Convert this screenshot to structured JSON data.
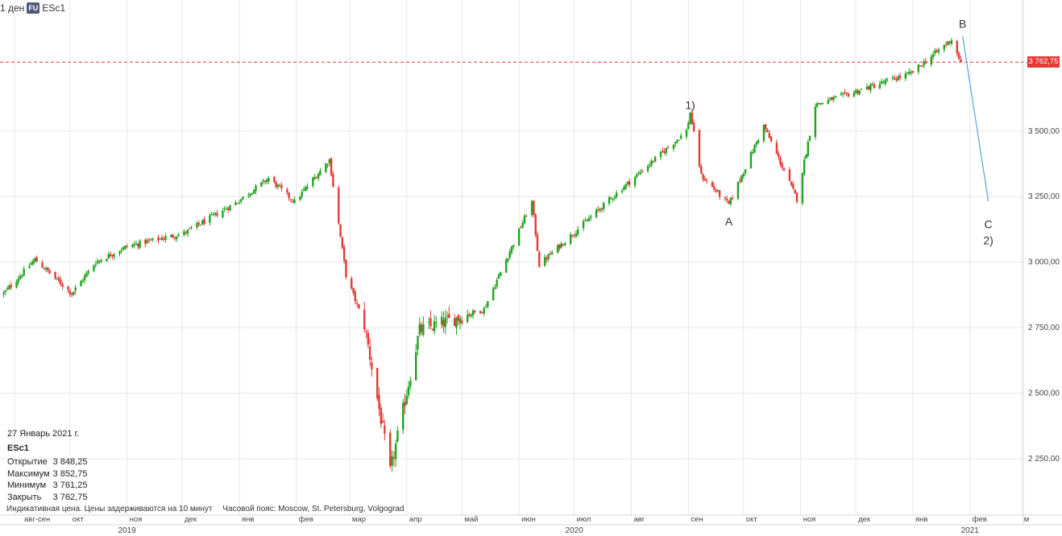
{
  "header": {
    "interval": "1 ден",
    "badge": "FU",
    "symbol": "ESc1"
  },
  "info": {
    "date": "27 Январь 2021 г.",
    "symbol": "ESc1",
    "rows": [
      {
        "label": "Открытие",
        "value": "3 848,25"
      },
      {
        "label": "Максимум",
        "value": "3 852,75"
      },
      {
        "label": "Минимум",
        "value": "3 761,25"
      },
      {
        "label": "Закрыть",
        "value": "3 762,75"
      }
    ]
  },
  "footer": {
    "note": "Индикативная цена. Цены задерживаются на 10 минут",
    "timezone": "Часовой пояс: Moscow, St. Petersburg, Volgograd"
  },
  "current_price_label": "3 762,75",
  "colors": {
    "up": "#1fa31f",
    "down": "#e53935",
    "grid": "#e6e6e6",
    "ref_line": "#e53935",
    "projection": "#5aa6d6"
  },
  "chart_data": {
    "type": "candlestick",
    "title": "",
    "xlabel": "",
    "ylabel": "",
    "ylim": [
      2090,
      4000
    ],
    "y_ticks": [
      {
        "v": 2250,
        "label": "2 250,00"
      },
      {
        "v": 2500,
        "label": "2 500,00"
      },
      {
        "v": 2750,
        "label": "2 750,00"
      },
      {
        "v": 3000,
        "label": "3 000,00"
      },
      {
        "v": 3250,
        "label": "3 250,00"
      },
      {
        "v": 3500,
        "label": "3 500,00"
      }
    ],
    "x_months": [
      {
        "label": "авг-сен",
        "date": "2019-09-01"
      },
      {
        "label": "окт",
        "date": "2019-10-01"
      },
      {
        "label": "ноя",
        "date": "2019-11-01"
      },
      {
        "label": "дек",
        "date": "2019-12-01"
      },
      {
        "label": "янв",
        "date": "2020-01-01"
      },
      {
        "label": "фев",
        "date": "2020-02-01"
      },
      {
        "label": "мар",
        "date": "2020-03-01"
      },
      {
        "label": "апр",
        "date": "2020-04-01"
      },
      {
        "label": "май",
        "date": "2020-05-01"
      },
      {
        "label": "июн",
        "date": "2020-06-01"
      },
      {
        "label": "июл",
        "date": "2020-07-01"
      },
      {
        "label": "авг",
        "date": "2020-08-01"
      },
      {
        "label": "сен",
        "date": "2020-09-01"
      },
      {
        "label": "окт",
        "date": "2020-10-01"
      },
      {
        "label": "ноя",
        "date": "2020-11-01"
      },
      {
        "label": "дек",
        "date": "2020-12-01"
      },
      {
        "label": "янв",
        "date": "2021-01-01"
      },
      {
        "label": "фев",
        "date": "2021-02-01"
      },
      {
        "label": "м",
        "date": "2021-03-01"
      }
    ],
    "x_years": [
      {
        "label": "2019",
        "date": "2019-11-01"
      },
      {
        "label": "2020",
        "date": "2020-07-01"
      },
      {
        "label": "2021",
        "date": "2021-02-01"
      }
    ],
    "x_range": [
      "2019-08-24",
      "2021-03-02"
    ],
    "reference_price": 3762.75,
    "price_path": [
      {
        "date": "2019-08-26",
        "close": 2880
      },
      {
        "date": "2019-09-12",
        "close": 3010
      },
      {
        "date": "2019-10-02",
        "close": 2880
      },
      {
        "date": "2019-10-15",
        "close": 3000
      },
      {
        "date": "2019-11-01",
        "close": 3060
      },
      {
        "date": "2019-12-02",
        "close": 3110
      },
      {
        "date": "2019-12-31",
        "close": 3230
      },
      {
        "date": "2020-01-17",
        "close": 3320
      },
      {
        "date": "2020-01-31",
        "close": 3230
      },
      {
        "date": "2020-02-19",
        "close": 3390
      },
      {
        "date": "2020-02-28",
        "close": 2950
      },
      {
        "date": "2020-03-09",
        "close": 2760
      },
      {
        "date": "2020-03-23",
        "close": 2200
      },
      {
        "date": "2020-04-08",
        "close": 2740
      },
      {
        "date": "2020-05-13",
        "close": 2820
      },
      {
        "date": "2020-06-08",
        "close": 3230
      },
      {
        "date": "2020-06-12",
        "close": 2990
      },
      {
        "date": "2020-07-22",
        "close": 3250
      },
      {
        "date": "2020-08-31",
        "close": 3500
      },
      {
        "date": "2020-09-02",
        "close": 3570
      },
      {
        "date": "2020-09-08",
        "close": 3330
      },
      {
        "date": "2020-09-23",
        "close": 3220
      },
      {
        "date": "2020-10-12",
        "close": 3520
      },
      {
        "date": "2020-10-30",
        "close": 3240
      },
      {
        "date": "2020-11-09",
        "close": 3600
      },
      {
        "date": "2020-12-31",
        "close": 3720
      },
      {
        "date": "2021-01-22",
        "close": 3850
      },
      {
        "date": "2021-01-27",
        "close": 3762.75
      }
    ],
    "annotations": [
      {
        "text": "1)",
        "date": "2020-09-02",
        "price": 3560,
        "anchor": "above"
      },
      {
        "text": "A",
        "date": "2020-09-23",
        "price": 3220,
        "anchor": "below"
      },
      {
        "text": "B",
        "date": "2021-01-28",
        "price": 3870,
        "anchor": "above"
      },
      {
        "text": "C",
        "date": "2021-02-11",
        "price": 3210,
        "anchor": "below"
      },
      {
        "text": "2)",
        "date": "2021-02-11",
        "price": 3210,
        "anchor": "below2"
      }
    ],
    "projection_line": [
      {
        "date": "2021-01-28",
        "price": 3862
      },
      {
        "date": "2021-02-11",
        "price": 3232
      }
    ],
    "grid": true
  }
}
